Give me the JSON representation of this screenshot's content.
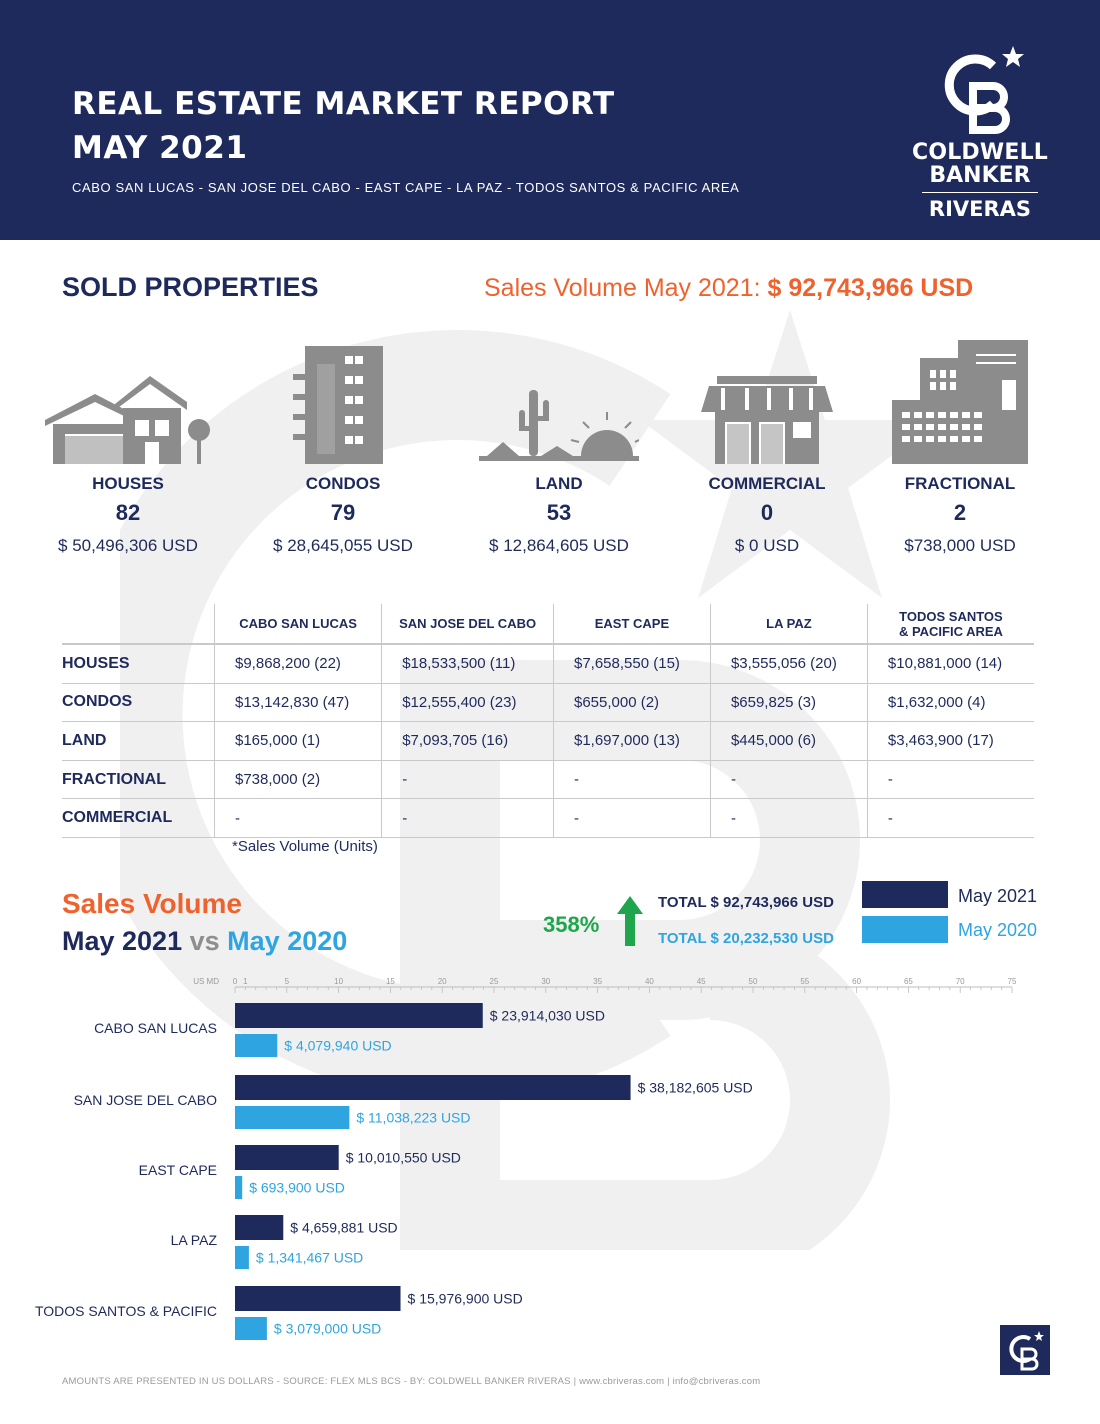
{
  "header": {
    "title_line1": "REAL ESTATE MARKET REPORT",
    "title_line2": "MAY 2021",
    "regions": "CABO SAN LUCAS - SAN JOSE DEL CABO - EAST CAPE - LA PAZ - TODOS SANTOS & PACIFIC AREA"
  },
  "logo": {
    "line1": "COLDWELL",
    "line2": "BANKER",
    "line3": "RIVERAS"
  },
  "sold": {
    "title": "SOLD PROPERTIES",
    "volume_label": "Sales Volume May 2021:",
    "volume_value": "$ 92,743,966 USD",
    "categories": [
      {
        "name": "HOUSES",
        "count": "82",
        "amount": "$ 50,496,306 USD",
        "icon": "house-icon"
      },
      {
        "name": "CONDOS",
        "count": "79",
        "amount": "$ 28,645,055  USD",
        "icon": "condo-building-icon"
      },
      {
        "name": "LAND",
        "count": "53",
        "amount": "$ 12,864,605 USD",
        "icon": "land-cactus-icon"
      },
      {
        "name": "COMMERCIAL",
        "count": "0",
        "amount": "$ 0 USD",
        "icon": "storefront-icon"
      },
      {
        "name": "FRACTIONAL",
        "count": "2",
        "amount": "$738,000 USD",
        "icon": "office-building-icon"
      }
    ]
  },
  "table": {
    "headers": [
      "CABO SAN LUCAS",
      "SAN JOSE DEL CABO",
      "EAST CAPE",
      "LA PAZ",
      "TODOS SANTOS",
      "& PACIFIC AREA"
    ],
    "rows": [
      {
        "label": "HOUSES",
        "cells": [
          "$9,868,200 (22)",
          "$18,533,500 (11)",
          "$7,658,550 (15)",
          "$3,555,056 (20)",
          "$10,881,000 (14)"
        ]
      },
      {
        "label": "CONDOS",
        "cells": [
          "$13,142,830 (47)",
          "$12,555,400 (23)",
          "$655,000 (2)",
          "$659,825 (3)",
          "$1,632,000 (4)"
        ]
      },
      {
        "label": "LAND",
        "cells": [
          "$165,000 (1)",
          "$7,093,705 (16)",
          "$1,697,000 (13)",
          "$445,000 (6)",
          "$3,463,900 (17)"
        ]
      },
      {
        "label": "FRACTIONAL",
        "cells": [
          "$738,000 (2)",
          "-",
          "-",
          "-",
          "-"
        ]
      },
      {
        "label": "COMMERCIAL",
        "cells": [
          "-",
          "-",
          "-",
          "-",
          "-"
        ]
      }
    ],
    "note": "*Sales Volume (Units)"
  },
  "comparison": {
    "title": "Sales Volume",
    "sub_2021": "May 2021",
    "sub_vs": "vs",
    "sub_2020": "May 2020",
    "percent": "358%",
    "total_2021": "TOTAL $ 92,743,966 USD",
    "total_2020": "TOTAL $ 20,232,530 USD",
    "legend_2021": "May 2021",
    "legend_2020": "May 2020",
    "color_2021": "#1f2a5c",
    "color_2020": "#2ea5e0",
    "accent": "#f0622d"
  },
  "chart_data": {
    "type": "bar",
    "orientation": "horizontal",
    "title": "Sales Volume May 2021 vs May 2020",
    "xlabel": "US MD",
    "xlim": [
      0,
      75
    ],
    "xticks": [
      0,
      1,
      5,
      10,
      15,
      20,
      25,
      30,
      35,
      40,
      45,
      50,
      55,
      60,
      65,
      70,
      75
    ],
    "categories": [
      "CABO SAN LUCAS",
      "SAN JOSE DEL CABO",
      "EAST CAPE",
      "LA PAZ",
      "TODOS SANTOS & PACIFIC"
    ],
    "series": [
      {
        "name": "May 2021",
        "values": [
          23.91403,
          38.182605,
          10.01055,
          4.659881,
          15.9769
        ],
        "labels": [
          "$ 23,914,030 USD",
          "$ 38,182,605 USD",
          "$ 10,010,550 USD",
          "$ 4,659,881 USD",
          "$ 15,976,900 USD"
        ]
      },
      {
        "name": "May 2020",
        "values": [
          4.07994,
          11.038223,
          0.6939,
          1.341467,
          3.079
        ],
        "labels": [
          "$ 4,079,940 USD",
          "$ 11,038,223 USD",
          "$ 693,900 USD",
          "$ 1,341,467 USD",
          "$ 3,079,000 USD"
        ]
      }
    ]
  },
  "footer": "AMOUNTS ARE PRESENTED IN US DOLLARS - SOURCE: FLEX MLS BCS - BY: COLDWELL BANKER RIVERAS  |  www.cbriveras.com  |  info@cbriveras.com"
}
